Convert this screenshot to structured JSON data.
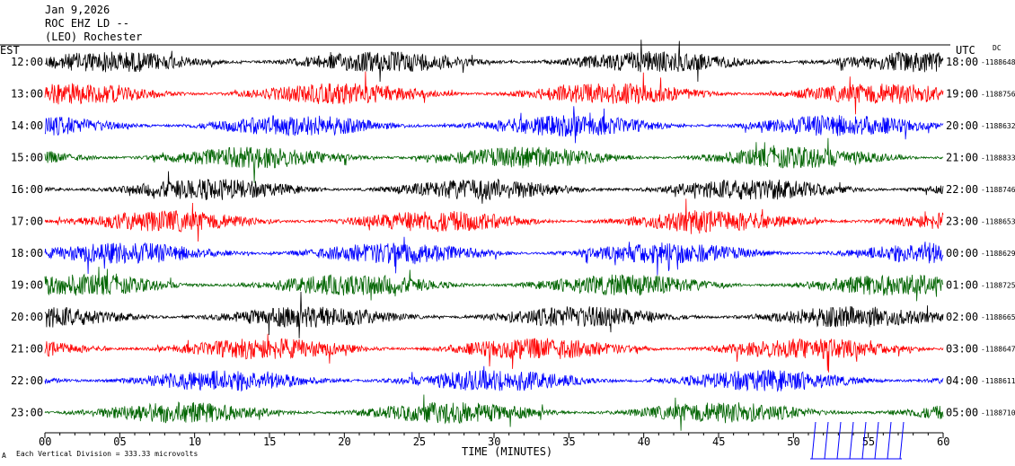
{
  "header": {
    "date": "Jan 9,2026",
    "station": "ROC EHZ LD --",
    "network": "(LEO) Rochester",
    "left_tz": "EST",
    "right_tz": "UTC",
    "dc_label": "DC"
  },
  "footer": {
    "scale_note": "Each Vertical Division =  333.33 microvolts",
    "xlabel": "TIME (MINUTES)"
  },
  "colors": {
    "cycle": [
      "#000000",
      "#ff0000",
      "#0000ff",
      "#006400"
    ]
  },
  "chart_data": {
    "type": "line",
    "title": "Jan 9,2026",
    "xlabel": "TIME (MINUTES)",
    "ylabel": "",
    "xlim": [
      0,
      60
    ],
    "x_ticks": [
      "00",
      "05",
      "10",
      "15",
      "20",
      "25",
      "30",
      "35",
      "40",
      "45",
      "50",
      "55",
      "60"
    ],
    "series": [
      {
        "left_time": "12:00",
        "right_time": "18:00",
        "dc_value": "-1188648",
        "color": "#000000",
        "amplitude": 12
      },
      {
        "left_time": "13:00",
        "right_time": "19:00",
        "dc_value": "-1188756",
        "color": "#ff0000",
        "amplitude": 12
      },
      {
        "left_time": "14:00",
        "right_time": "20:00",
        "dc_value": "-1188632",
        "color": "#0000ff",
        "amplitude": 12
      },
      {
        "left_time": "15:00",
        "right_time": "21:00",
        "dc_value": "-1188833",
        "color": "#006400",
        "amplitude": 12
      },
      {
        "left_time": "16:00",
        "right_time": "22:00",
        "dc_value": "-1188746",
        "color": "#000000",
        "amplitude": 12
      },
      {
        "left_time": "17:00",
        "right_time": "23:00",
        "dc_value": "-1188653",
        "color": "#ff0000",
        "amplitude": 12
      },
      {
        "left_time": "18:00",
        "right_time": "00:00",
        "dc_value": "-1188629",
        "color": "#0000ff",
        "amplitude": 12
      },
      {
        "left_time": "19:00",
        "right_time": "01:00",
        "dc_value": "-1188725",
        "color": "#006400",
        "amplitude": 12
      },
      {
        "left_time": "20:00",
        "right_time": "02:00",
        "dc_value": "-1188665",
        "color": "#000000",
        "amplitude": 12
      },
      {
        "left_time": "21:00",
        "right_time": "03:00",
        "dc_value": "-1188647",
        "color": "#ff0000",
        "amplitude": 12
      },
      {
        "left_time": "22:00",
        "right_time": "04:00",
        "dc_value": "-1188611",
        "color": "#0000ff",
        "amplitude": 12
      },
      {
        "left_time": "23:00",
        "right_time": "05:00",
        "dc_value": "-1188710",
        "color": "#006400",
        "amplitude": 12
      }
    ]
  }
}
